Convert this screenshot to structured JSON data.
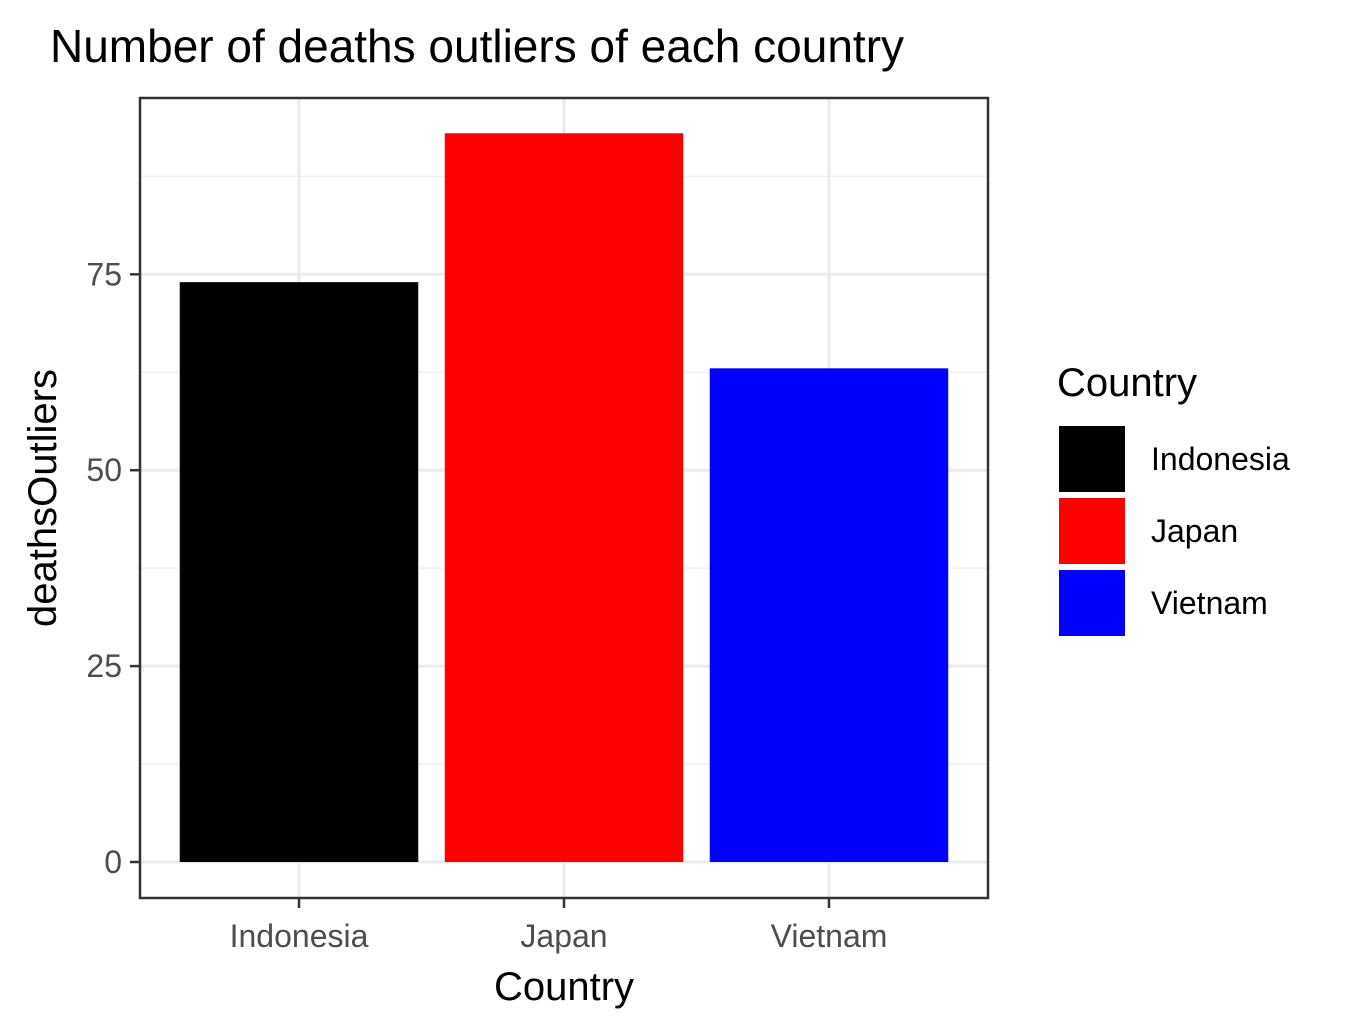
{
  "chart_data": {
    "type": "bar",
    "title": "Number of deaths outliers of each country",
    "xlabel": "Country",
    "ylabel": "deathsOutliers",
    "categories": [
      "Indonesia",
      "Japan",
      "Vietnam"
    ],
    "values": [
      74,
      93,
      63
    ],
    "colors": [
      "#000000",
      "#ff0000",
      "#0000ff"
    ],
    "ylim": [
      0,
      97.5
    ],
    "yticks": [
      0,
      25,
      50,
      75
    ],
    "ytick_labels": [
      "0",
      "25",
      "50",
      "75"
    ],
    "grid": true,
    "legend": {
      "title": "Country",
      "placement": "right",
      "entries": [
        "Indonesia",
        "Japan",
        "Vietnam"
      ]
    }
  }
}
